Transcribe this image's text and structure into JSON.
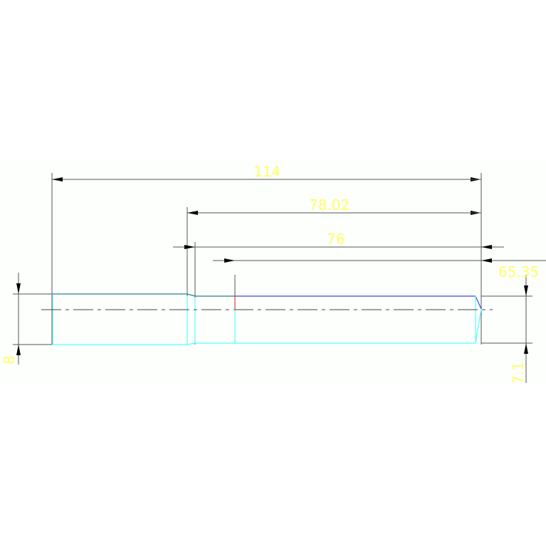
{
  "drawing": {
    "dimensions": {
      "overall_length": "114",
      "length_2": "78.02",
      "length_3": "76",
      "length_4": "65.35",
      "left_height": "8",
      "right_height": "7.1"
    },
    "colors": {
      "background_band": "#fcfffc",
      "dimension_line": "#555555",
      "dimension_text": "#ffff66",
      "outline_cyan": "#55ffff",
      "outline_teal": "#2e7d7d",
      "outline_blue": "#4444dd",
      "marker_red": "#ee3333",
      "centerline": "#444444"
    }
  }
}
